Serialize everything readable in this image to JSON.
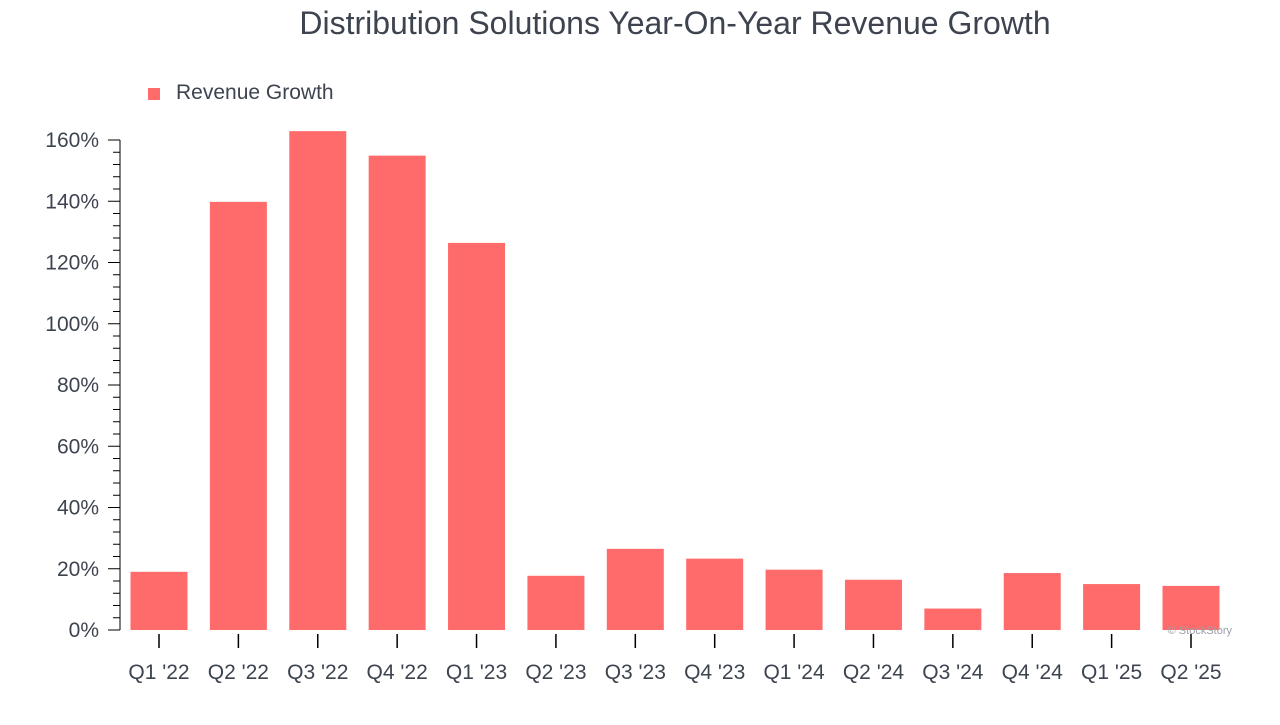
{
  "colors": {
    "bar": "#ff6b6b",
    "text": "#3d4450",
    "axis": "#000000",
    "watermark": "#9aa0a8",
    "background": "#ffffff"
  },
  "watermark": "© StockStory",
  "chart_data": {
    "type": "bar",
    "title": "Distribution Solutions Year-On-Year Revenue Growth",
    "xlabel": "",
    "ylabel": "",
    "legend": [
      "Revenue Growth"
    ],
    "legend_position": "top-left",
    "grid": false,
    "categories": [
      "Q1 '22",
      "Q2 '22",
      "Q3 '22",
      "Q4 '22",
      "Q1 '23",
      "Q2 '23",
      "Q3 '23",
      "Q4 '23",
      "Q1 '24",
      "Q2 '24",
      "Q3 '24",
      "Q4 '24",
      "Q1 '25",
      "Q2 '25"
    ],
    "series": [
      {
        "name": "Revenue Growth",
        "values": [
          19.0,
          139.8,
          162.9,
          154.9,
          126.4,
          17.7,
          26.5,
          23.3,
          19.7,
          16.4,
          7.0,
          18.6,
          15.0,
          14.4
        ]
      }
    ],
    "ylim": [
      0,
      160
    ],
    "yticks": [
      0,
      20,
      40,
      60,
      80,
      100,
      120,
      140,
      160
    ],
    "ytick_labels": [
      "0%",
      "20%",
      "40%",
      "60%",
      "80%",
      "100%",
      "120%",
      "140%",
      "160%"
    ],
    "minor_ytick_step": 4
  }
}
